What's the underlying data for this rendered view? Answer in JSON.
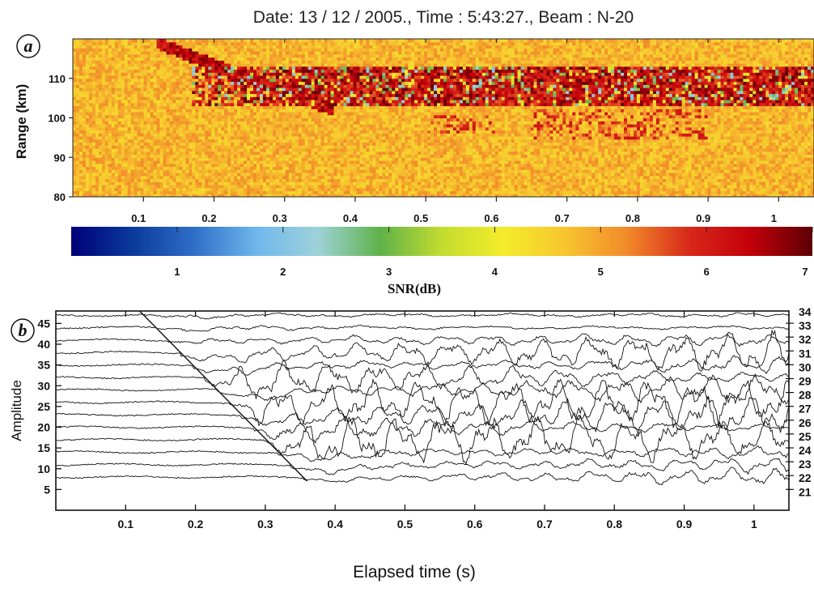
{
  "chart_data": [
    {
      "panel": "a",
      "type": "heatmap",
      "title": "Date: 13 / 12 / 2005., Time : 5:43:27., Beam : N-20",
      "ylabel": "Range (km)",
      "xlim": [
        0,
        1.05
      ],
      "ylim": [
        80,
        120
      ],
      "xticks": [
        "0.1",
        "0.2",
        "0.3",
        "0.4",
        "0.5",
        "0.6",
        "0.7",
        "0.8",
        "0.9",
        "1"
      ],
      "yticks": [
        "80",
        "90",
        "100",
        "110"
      ],
      "colorbar": {
        "label": "SNR(dB)",
        "range": [
          0,
          7
        ],
        "ticks": [
          "1",
          "2",
          "3",
          "4",
          "5",
          "6",
          "7"
        ],
        "stops": [
          "#00007a",
          "#0a3a9c",
          "#2f6fc8",
          "#6fb7ec",
          "#9ed2d8",
          "#5fb24a",
          "#c3dc2f",
          "#f4ec2a",
          "#f7c52f",
          "#f28a2a",
          "#d8281a",
          "#c3000a",
          "#5c0005"
        ]
      },
      "background_snr_db": 4.8,
      "echo_band": {
        "time_s": [
          0.12,
          1.05
        ],
        "range_km": [
          103,
          113
        ],
        "snr_db": [
          5.5,
          7
        ]
      },
      "descending_trail": {
        "time_s": [
          0.12,
          0.37
        ],
        "range_km": [
          119,
          102
        ]
      },
      "diffuse_patches": [
        {
          "time_s": [
            0.5,
            0.6
          ],
          "range_km": [
            96,
            101
          ]
        },
        {
          "time_s": [
            0.65,
            0.9
          ],
          "range_km": [
            95,
            102
          ]
        }
      ]
    },
    {
      "panel": "b",
      "type": "line",
      "xlabel": "Elapsed time (s)",
      "ylabel": "Amplitude",
      "xlim": [
        0,
        1.05
      ],
      "ylim": [
        0,
        48
      ],
      "xticks": [
        "0.1",
        "0.2",
        "0.3",
        "0.4",
        "0.5",
        "0.6",
        "0.7",
        "0.8",
        "0.9",
        "1"
      ],
      "yticks": [
        "5",
        "10",
        "15",
        "20",
        "25",
        "30",
        "35",
        "40",
        "45"
      ],
      "right_labels": [
        "34",
        "33",
        "32",
        "31",
        "30",
        "29",
        "28",
        "27",
        "26",
        "25",
        "24",
        "23",
        "22",
        "21"
      ],
      "trace_offsets": [
        47,
        44,
        41,
        38,
        35,
        32,
        29,
        26,
        23,
        20,
        17,
        14,
        11,
        8
      ],
      "meteor_onset": {
        "time_s": [
          0.12,
          0.36
        ],
        "amplitude": [
          48,
          7
        ]
      },
      "line_color": "#111111"
    }
  ],
  "panel_labels": [
    "a",
    "b"
  ]
}
